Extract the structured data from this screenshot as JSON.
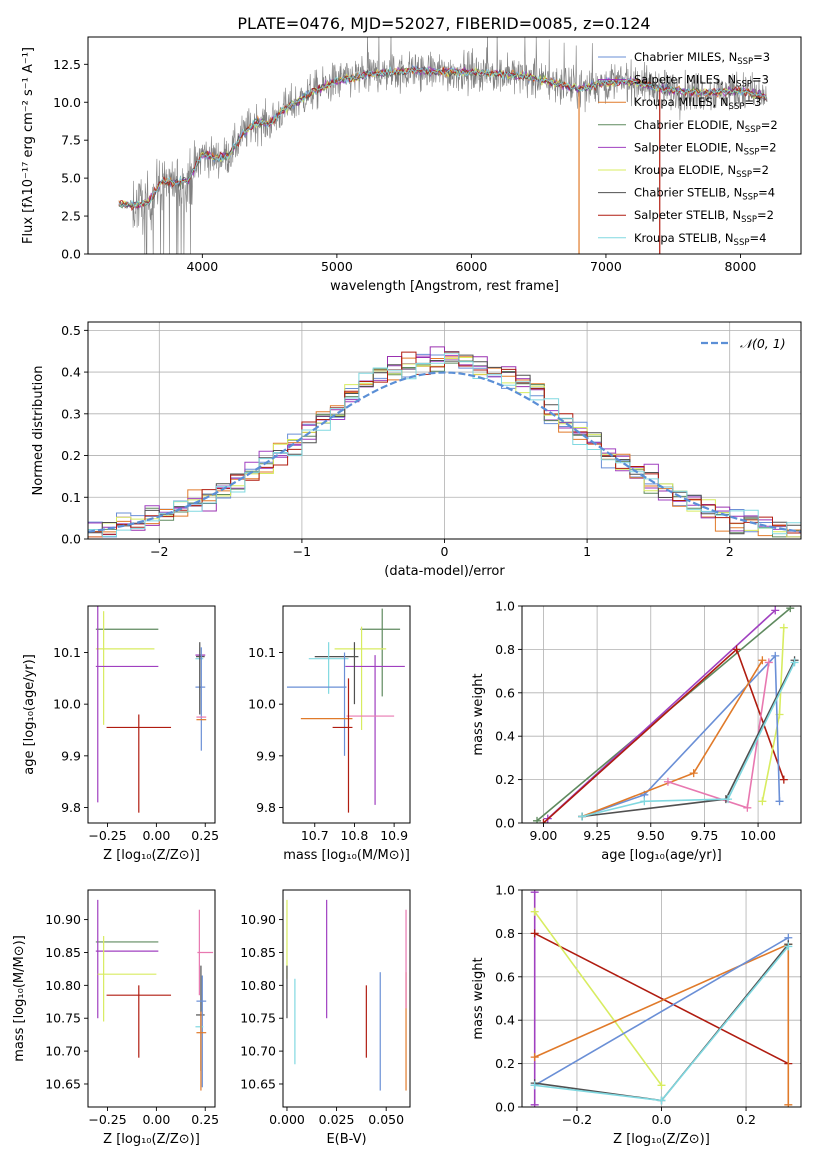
{
  "figure": {
    "title": "PLATE=0476, MJD=52027, FIBERID=0085, z=0.124"
  },
  "colors": {
    "Chabrier MILES": "#6a8fd6",
    "Salpeter MILES": "#9a30b0",
    "Kroupa MILES": "#e07a2a",
    "Chabrier ELODIE": "#5f8a5f",
    "Salpeter ELODIE": "#a040c0",
    "Kroupa ELODIE": "#d8ec60",
    "Chabrier STELIB": "#505050",
    "Salpeter STELIB": "#b01c10",
    "Kroupa STELIB": "#80d8e0",
    "data": "#808080",
    "normal": "#5b8fd6",
    "pink": "#e878b0"
  },
  "chart_data": [
    {
      "id": "spectrum",
      "type": "line",
      "xlabel": "wavelength [Angstrom, rest frame]",
      "ylabel": "Flux [fλ10⁻¹⁷ erg cm⁻² s⁻¹ A⁻¹]",
      "xlim": [
        3150,
        8450
      ],
      "ylim": [
        0,
        14.3
      ],
      "xticks": [
        4000,
        5000,
        6000,
        7000,
        8000
      ],
      "yticks": [
        0.0,
        2.5,
        5.0,
        7.5,
        10.0,
        12.5
      ],
      "ytick_labels": [
        "0.0",
        "2.5",
        "5.0",
        "7.5",
        "10.0",
        "12.5"
      ],
      "grid": false,
      "legend_position": "right",
      "data_envelope": {
        "x": [
          3380,
          3500,
          3600,
          3700,
          3800,
          3900,
          4000,
          4100,
          4200,
          4300,
          4400,
          4500,
          4600,
          4700,
          4800,
          4900,
          5000,
          5200,
          5400,
          5600,
          5800,
          6000,
          6200,
          6400,
          6600,
          6800,
          7000,
          7200,
          7400,
          7600,
          7800,
          8000,
          8200
        ],
        "y": [
          3.3,
          3.2,
          3.4,
          4.8,
          4.7,
          4.9,
          6.6,
          6.3,
          6.5,
          7.9,
          8.7,
          8.6,
          9.5,
          10.0,
          10.6,
          11.0,
          11.4,
          11.8,
          12.0,
          12.1,
          12.0,
          12.0,
          11.9,
          11.7,
          11.3,
          10.9,
          11.3,
          11.4,
          10.9,
          10.7,
          10.6,
          10.8,
          10.3
        ]
      },
      "series": [
        {
          "name": "Chabrier MILES",
          "nssp": "3"
        },
        {
          "name": "Salpeter MILES",
          "nssp": "3"
        },
        {
          "name": "Kroupa MILES",
          "nssp": "3"
        },
        {
          "name": "Chabrier ELODIE",
          "nssp": "2"
        },
        {
          "name": "Salpeter ELODIE",
          "nssp": "2"
        },
        {
          "name": "Kroupa ELODIE",
          "nssp": "2"
        },
        {
          "name": "Chabrier STELIB",
          "nssp": "4"
        },
        {
          "name": "Salpeter STELIB",
          "nssp": "2"
        },
        {
          "name": "Kroupa STELIB",
          "nssp": "4"
        }
      ]
    },
    {
      "id": "residuals",
      "type": "histogram",
      "xlabel": "(data-model)/error",
      "ylabel": "Normed distribution",
      "xlim": [
        -2.5,
        2.5
      ],
      "ylim": [
        0,
        0.52
      ],
      "xticks": [
        -2,
        -1,
        0,
        1,
        2
      ],
      "xtick_labels": [
        "−2",
        "−1",
        "0",
        "1",
        "2"
      ],
      "yticks": [
        0.0,
        0.1,
        0.2,
        0.3,
        0.4,
        0.5
      ],
      "ytick_labels": [
        "0.0",
        "0.1",
        "0.2",
        "0.3",
        "0.4",
        "0.5"
      ],
      "grid": true,
      "legend": "𝒩(0, 1)",
      "legend_position": "top-right",
      "bin_width": 0.1
    },
    {
      "id": "age-vs-Z",
      "type": "scatter",
      "xlabel": "Z [log₁₀(Z/Z⊙)]",
      "ylabel": "age  [log₁₀(age/yr)]",
      "xlim": [
        -0.35,
        0.3
      ],
      "ylim": [
        9.77,
        10.19
      ],
      "xticks": [
        -0.25,
        0.0,
        0.25
      ],
      "xtick_labels": [
        "−0.25",
        "0.00",
        "0.25"
      ],
      "yticks": [
        9.8,
        9.9,
        10.0,
        10.1
      ],
      "ytick_labels": [
        "9.8",
        "9.9",
        "10.0",
        "10.1"
      ],
      "points": [
        {
          "c": "Chabrier ELODIE",
          "x": -0.15,
          "y": 10.145,
          "xerr": 0.16,
          "yerr": 0.0
        },
        {
          "c": "Kroupa ELODIE",
          "x": -0.16,
          "y": 10.107,
          "xerr": 0.15,
          "yerr": 0.0
        },
        {
          "c": "Kroupa ELODIE",
          "x": -0.27,
          "y": 10.07,
          "xerr": 0.0,
          "yerr": 0.11
        },
        {
          "c": "Salpeter ELODIE",
          "x": -0.15,
          "y": 10.073,
          "xerr": 0.16,
          "yerr": 0.0
        },
        {
          "c": "Salpeter ELODIE",
          "x": -0.3,
          "y": 10.07,
          "xerr": 0.0,
          "yerr": 0.26
        },
        {
          "c": "Chabrier STELIB",
          "x": 0.225,
          "y": 10.092,
          "xerr": 0.022,
          "yerr": 0.0
        },
        {
          "c": "Kroupa STELIB",
          "x": 0.22,
          "y": 10.088,
          "xerr": 0.02,
          "yerr": 0.0
        },
        {
          "c": "Salpeter MILES",
          "x": 0.225,
          "y": 10.095,
          "xerr": 0.025,
          "yerr": 0.0
        },
        {
          "c": "Chabrier MILES",
          "x": 0.225,
          "y": 10.033,
          "xerr": 0.025,
          "yerr": 0.0
        },
        {
          "c": "Chabrier STELIB",
          "x": 0.222,
          "y": 10.05,
          "xerr": 0.0,
          "yerr": 0.07
        },
        {
          "c": "Chabrier MILES",
          "x": 0.23,
          "y": 10.01,
          "xerr": 0.0,
          "yerr": 0.1
        },
        {
          "c": "pink",
          "x": 0.23,
          "y": 9.975,
          "xerr": 0.025,
          "yerr": 0.0
        },
        {
          "c": "Kroupa MILES",
          "x": 0.23,
          "y": 9.97,
          "xerr": 0.025,
          "yerr": 0.0
        },
        {
          "c": "Salpeter STELIB",
          "x": -0.09,
          "y": 9.955,
          "xerr": 0.165,
          "yerr": 0.0
        },
        {
          "c": "Salpeter STELIB",
          "x": -0.09,
          "y": 9.885,
          "xerr": 0.0,
          "yerr": 0.095
        }
      ]
    },
    {
      "id": "age-vs-mass",
      "type": "scatter",
      "xlabel": "mass [log₁₀(M/M⊙)]",
      "ylabel": "",
      "xlim": [
        10.62,
        10.94
      ],
      "ylim": [
        9.77,
        10.19
      ],
      "xticks": [
        10.7,
        10.8,
        10.9
      ],
      "xtick_labels": [
        "10.7",
        "10.8",
        "10.9"
      ],
      "yticks": [
        9.8,
        9.9,
        10.0,
        10.1
      ],
      "ytick_labels": [
        "9.8",
        "9.9",
        "10.0",
        "10.1"
      ],
      "points": [
        {
          "c": "Chabrier ELODIE",
          "x": 10.865,
          "y": 10.145,
          "xerr": 0.05,
          "yerr": 0.0
        },
        {
          "c": "Chabrier ELODIE",
          "x": 10.87,
          "y": 10.1,
          "xerr": 0.0,
          "yerr": 0.085
        },
        {
          "c": "Kroupa ELODIE",
          "x": 10.815,
          "y": 10.107,
          "xerr": 0.065,
          "yerr": 0.0
        },
        {
          "c": "Kroupa ELODIE",
          "x": 10.818,
          "y": 10.05,
          "xerr": 0.0,
          "yerr": 0.1
        },
        {
          "c": "Salpeter ELODIE",
          "x": 10.852,
          "y": 10.073,
          "xerr": 0.075,
          "yerr": 0.0
        },
        {
          "c": "Salpeter ELODIE",
          "x": 10.852,
          "y": 9.95,
          "xerr": 0.0,
          "yerr": 0.145
        },
        {
          "c": "Chabrier STELIB",
          "x": 10.755,
          "y": 10.092,
          "xerr": 0.055,
          "yerr": 0.0
        },
        {
          "c": "Chabrier STELIB",
          "x": 10.8,
          "y": 10.06,
          "xerr": 0.0,
          "yerr": 0.06
        },
        {
          "c": "Kroupa STELIB",
          "x": 10.735,
          "y": 10.088,
          "xerr": 0.05,
          "yerr": 0.0
        },
        {
          "c": "Kroupa STELIB",
          "x": 10.735,
          "y": 10.07,
          "xerr": 0.0,
          "yerr": 0.05
        },
        {
          "c": "Chabrier MILES",
          "x": 10.705,
          "y": 10.033,
          "xerr": 0.075,
          "yerr": 0.0
        },
        {
          "c": "Chabrier MILES",
          "x": 10.775,
          "y": 10.0,
          "xerr": 0.0,
          "yerr": 0.1
        },
        {
          "c": "Kroupa MILES",
          "x": 10.73,
          "y": 9.972,
          "xerr": 0.065,
          "yerr": 0.0
        },
        {
          "c": "pink",
          "x": 10.84,
          "y": 9.977,
          "xerr": 0.06,
          "yerr": 0.0
        },
        {
          "c": "Salpeter STELIB",
          "x": 10.77,
          "y": 9.955,
          "xerr": 0.025,
          "yerr": 0.0
        },
        {
          "c": "Salpeter STELIB",
          "x": 10.785,
          "y": 9.92,
          "xerr": 0.0,
          "yerr": 0.13
        }
      ]
    },
    {
      "id": "mass-weight-vs-age",
      "type": "line",
      "xlabel": "age  [log₁₀(age/yr)]",
      "ylabel": "mass weight",
      "xlim": [
        8.9,
        10.2
      ],
      "ylim": [
        0,
        1
      ],
      "xticks": [
        9.0,
        9.25,
        9.5,
        9.75,
        10.0
      ],
      "xtick_labels": [
        "9.00",
        "9.25",
        "9.50",
        "9.75",
        "10.00"
      ],
      "yticks": [
        0.0,
        0.2,
        0.4,
        0.6,
        0.8,
        1.0
      ],
      "ytick_labels": [
        "0.0",
        "0.2",
        "0.4",
        "0.6",
        "0.8",
        "1.0"
      ],
      "grid": true,
      "series": [
        {
          "c": "Chabrier ELODIE",
          "x": [
            8.97,
            10.15
          ],
          "y": [
            0.01,
            0.99
          ]
        },
        {
          "c": "Salpeter ELODIE",
          "x": [
            9.02,
            10.08
          ],
          "y": [
            0.02,
            0.98
          ]
        },
        {
          "c": "Salpeter STELIB",
          "x": [
            9.0,
            9.9,
            10.12
          ],
          "y": [
            0.0,
            0.8,
            0.2
          ]
        },
        {
          "c": "Kroupa ELODIE",
          "x": [
            10.02,
            10.1,
            10.12
          ],
          "y": [
            0.1,
            0.5,
            0.9
          ]
        },
        {
          "c": "Chabrier MILES",
          "x": [
            9.18,
            9.47,
            10.08,
            10.1
          ],
          "y": [
            0.03,
            0.13,
            0.77,
            0.1
          ]
        },
        {
          "c": "Kroupa MILES",
          "x": [
            9.18,
            9.7,
            10.02
          ],
          "y": [
            0.03,
            0.23,
            0.75
          ]
        },
        {
          "c": "pink",
          "x": [
            9.58,
            9.95,
            10.05
          ],
          "y": [
            0.19,
            0.07,
            0.74
          ]
        },
        {
          "c": "Chabrier STELIB",
          "x": [
            9.18,
            9.85,
            10.17
          ],
          "y": [
            0.03,
            0.11,
            0.75
          ]
        },
        {
          "c": "Kroupa STELIB",
          "x": [
            9.18,
            9.47,
            9.86,
            10.17
          ],
          "y": [
            0.03,
            0.1,
            0.11,
            0.74
          ]
        }
      ]
    },
    {
      "id": "mass-vs-Z",
      "type": "scatter",
      "xlabel": "Z [log₁₀(Z/Z⊙)]",
      "ylabel": "mass [log₁₀(M/M⊙)]",
      "xlim": [
        -0.35,
        0.3
      ],
      "ylim": [
        10.615,
        10.945
      ],
      "xticks": [
        -0.25,
        0.0,
        0.25
      ],
      "xtick_labels": [
        "−0.25",
        "0.00",
        "0.25"
      ],
      "yticks": [
        10.65,
        10.7,
        10.75,
        10.8,
        10.85,
        10.9
      ],
      "ytick_labels": [
        "10.65",
        "10.70",
        "10.75",
        "10.80",
        "10.85",
        "10.90"
      ],
      "points": [
        {
          "c": "Chabrier ELODIE",
          "x": -0.15,
          "y": 10.866,
          "xerr": 0.16,
          "yerr": 0.0
        },
        {
          "c": "Salpeter ELODIE",
          "x": -0.15,
          "y": 10.852,
          "xerr": 0.16,
          "yerr": 0.0
        },
        {
          "c": "Salpeter ELODIE",
          "x": -0.3,
          "y": 10.84,
          "xerr": 0.0,
          "yerr": 0.09
        },
        {
          "c": "Kroupa ELODIE",
          "x": -0.15,
          "y": 10.817,
          "xerr": 0.15,
          "yerr": 0.0
        },
        {
          "c": "Kroupa ELODIE",
          "x": -0.27,
          "y": 10.81,
          "xerr": 0.0,
          "yerr": 0.065
        },
        {
          "c": "Salpeter STELIB",
          "x": -0.09,
          "y": 10.785,
          "xerr": 0.165,
          "yerr": 0.0
        },
        {
          "c": "Salpeter STELIB",
          "x": -0.09,
          "y": 10.745,
          "xerr": 0.0,
          "yerr": 0.055
        },
        {
          "c": "pink",
          "x": 0.22,
          "y": 10.85,
          "xerr": 0.0,
          "yerr": 0.065
        },
        {
          "c": "pink",
          "x": 0.25,
          "y": 10.85,
          "xerr": 0.04,
          "yerr": 0.0
        },
        {
          "c": "Chabrier STELIB",
          "x": 0.225,
          "y": 10.755,
          "xerr": 0.022,
          "yerr": 0.0
        },
        {
          "c": "Chabrier STELIB",
          "x": 0.228,
          "y": 10.75,
          "xerr": 0.0,
          "yerr": 0.08
        },
        {
          "c": "Chabrier MILES",
          "x": 0.23,
          "y": 10.776,
          "xerr": 0.025,
          "yerr": 0.0
        },
        {
          "c": "Chabrier MILES",
          "x": 0.235,
          "y": 10.73,
          "xerr": 0.0,
          "yerr": 0.085
        },
        {
          "c": "Kroupa STELIB",
          "x": 0.22,
          "y": 10.737,
          "xerr": 0.02,
          "yerr": 0.0
        },
        {
          "c": "Kroupa MILES",
          "x": 0.23,
          "y": 10.728,
          "xerr": 0.025,
          "yerr": 0.0
        },
        {
          "c": "Kroupa MILES",
          "x": 0.228,
          "y": 10.7,
          "xerr": 0.0,
          "yerr": 0.06
        }
      ]
    },
    {
      "id": "mass-vs-EBV",
      "type": "scatter",
      "xlabel": "E(B-V)",
      "ylabel": "",
      "xlim": [
        -0.002,
        0.062
      ],
      "ylim": [
        10.615,
        10.945
      ],
      "xticks": [
        0.0,
        0.025,
        0.05
      ],
      "xtick_labels": [
        "0.000",
        "0.025",
        "0.050"
      ],
      "yticks": [
        10.65,
        10.7,
        10.75,
        10.8,
        10.85,
        10.9
      ],
      "ytick_labels": [
        "10.65",
        "10.70",
        "10.75",
        "10.80",
        "10.85",
        "10.90"
      ],
      "points": [
        {
          "c": "Kroupa ELODIE",
          "x": 0.0,
          "y": 10.87,
          "xerr": 0.0,
          "yerr": 0.06
        },
        {
          "c": "Chabrier STELIB",
          "x": 0.0,
          "y": 10.79,
          "xerr": 0.0,
          "yerr": 0.04
        },
        {
          "c": "Kroupa STELIB",
          "x": 0.004,
          "y": 10.745,
          "xerr": 0.0,
          "yerr": 0.065
        },
        {
          "c": "Salpeter ELODIE",
          "x": 0.02,
          "y": 10.84,
          "xerr": 0.0,
          "yerr": 0.09
        },
        {
          "c": "Salpeter STELIB",
          "x": 0.04,
          "y": 10.745,
          "xerr": 0.0,
          "yerr": 0.055
        },
        {
          "c": "Chabrier MILES",
          "x": 0.047,
          "y": 10.73,
          "xerr": 0.0,
          "yerr": 0.09
        },
        {
          "c": "Kroupa MILES",
          "x": 0.06,
          "y": 10.73,
          "xerr": 0.0,
          "yerr": 0.09
        },
        {
          "c": "pink",
          "x": 0.06,
          "y": 10.84,
          "xerr": 0.0,
          "yerr": 0.075
        }
      ]
    },
    {
      "id": "mass-weight-vs-Z",
      "type": "line",
      "xlabel": "Z [log₁₀(Z/Z⊙)]",
      "ylabel": "mass weight",
      "xlim": [
        -0.33,
        0.33
      ],
      "ylim": [
        0,
        1
      ],
      "xticks": [
        -0.2,
        0.0,
        0.2
      ],
      "xtick_labels": [
        "−0.2",
        "0.0",
        "0.2"
      ],
      "yticks": [
        0.0,
        0.2,
        0.4,
        0.6,
        0.8,
        1.0
      ],
      "ytick_labels": [
        "0.0",
        "0.2",
        "0.4",
        "0.6",
        "0.8",
        "1.0"
      ],
      "grid": true,
      "series": [
        {
          "c": "Salpeter ELODIE",
          "x": [
            -0.3,
            -0.3
          ],
          "y": [
            0.01,
            0.99
          ]
        },
        {
          "c": "Salpeter STELIB",
          "x": [
            -0.3,
            0.3
          ],
          "y": [
            0.8,
            0.2
          ]
        },
        {
          "c": "Kroupa ELODIE",
          "x": [
            -0.3,
            0.0
          ],
          "y": [
            0.9,
            0.1
          ]
        },
        {
          "c": "Kroupa MILES",
          "x": [
            -0.3,
            0.3,
            0.3
          ],
          "y": [
            0.23,
            0.75,
            0.01
          ]
        },
        {
          "c": "Chabrier MILES",
          "x": [
            -0.3,
            0.3
          ],
          "y": [
            0.1,
            0.78
          ]
        },
        {
          "c": "Chabrier STELIB",
          "x": [
            -0.3,
            0.0,
            0.3
          ],
          "y": [
            0.11,
            0.03,
            0.75
          ]
        },
        {
          "c": "Kroupa STELIB",
          "x": [
            -0.3,
            0.0,
            0.3
          ],
          "y": [
            0.1,
            0.03,
            0.74
          ]
        }
      ]
    }
  ]
}
